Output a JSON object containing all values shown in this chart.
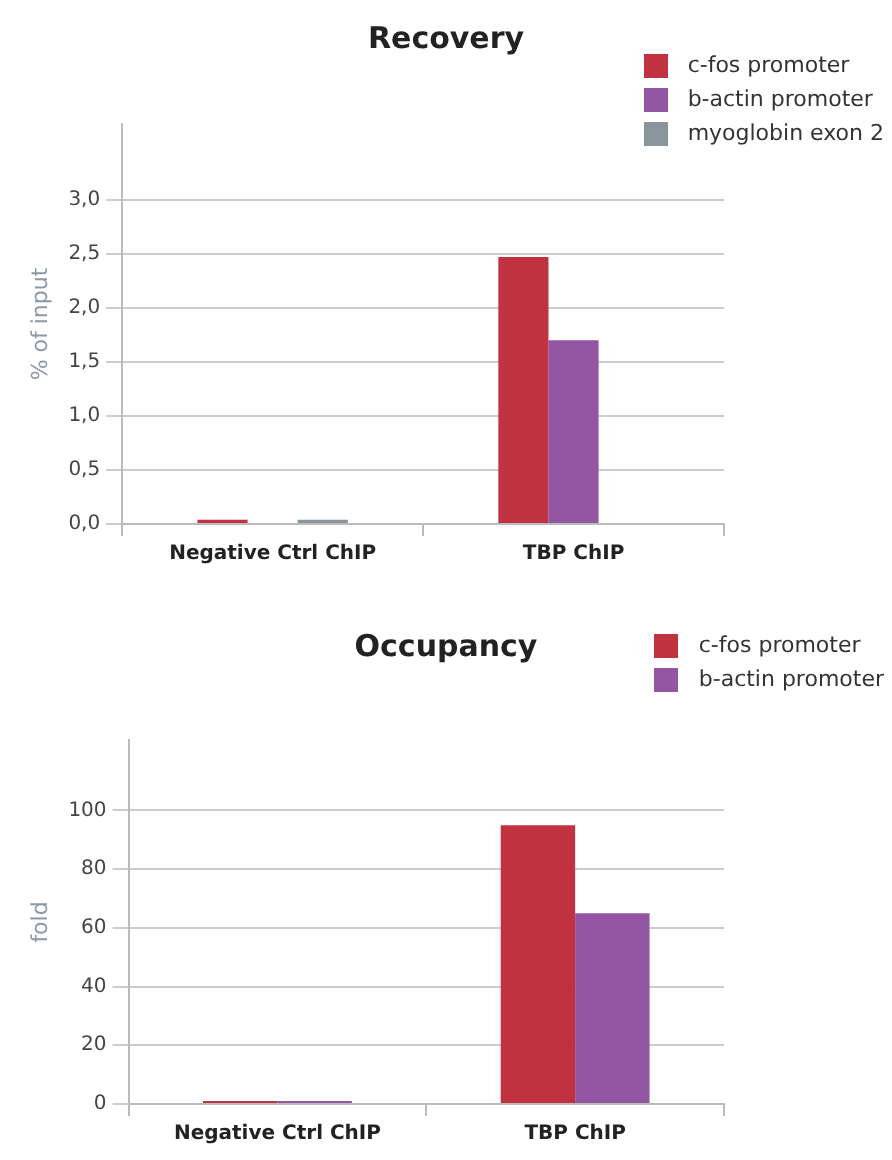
{
  "chart_data": [
    {
      "type": "bar",
      "title": "Recovery",
      "ylabel": "% of input",
      "categories": [
        "Negative Ctrl ChIP",
        "TBP ChIP"
      ],
      "series": [
        {
          "name": "c-fos promoter",
          "color": "#c0323f",
          "values": [
            0.04,
            2.47
          ]
        },
        {
          "name": "b-actin promoter",
          "color": "#9356a3",
          "values": [
            0,
            1.7
          ]
        },
        {
          "name": "myoglobin exon 2",
          "color": "#8a969c",
          "values": [
            0.04,
            0
          ]
        }
      ],
      "ylim": [
        0,
        3.7
      ],
      "yticks": [
        {
          "value": 0,
          "label": "0,0"
        },
        {
          "value": 0.5,
          "label": "0,5"
        },
        {
          "value": 1,
          "label": "1,0"
        },
        {
          "value": 1.5,
          "label": "1,5"
        },
        {
          "value": 2,
          "label": "2,0"
        },
        {
          "value": 2.5,
          "label": "2,5"
        },
        {
          "value": 3,
          "label": "3,0"
        }
      ],
      "grid": "y",
      "legend": "top right"
    },
    {
      "type": "bar",
      "title": "Occupancy",
      "ylabel": "fold",
      "categories": [
        "Negative Ctrl ChIP",
        "TBP ChIP"
      ],
      "series": [
        {
          "name": "c-fos promoter",
          "color": "#c0323f",
          "values": [
            1,
            95
          ]
        },
        {
          "name": "b-actin promoter",
          "color": "#9356a3",
          "values": [
            1,
            65
          ]
        }
      ],
      "ylim": [
        0,
        124
      ],
      "yticks": [
        0,
        20,
        40,
        60,
        80,
        100
      ],
      "grid": "y",
      "legend": "top right"
    }
  ]
}
